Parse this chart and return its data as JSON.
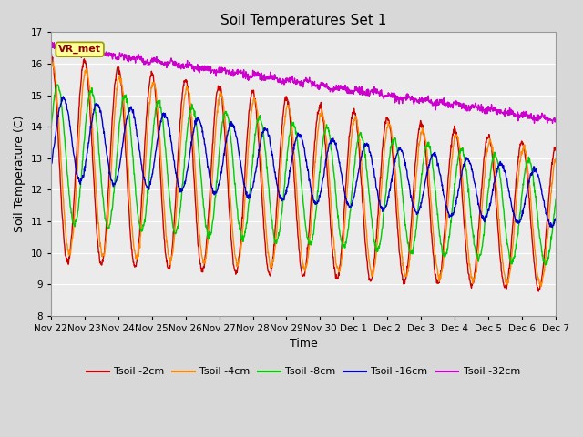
{
  "title": "Soil Temperatures Set 1",
  "xlabel": "Time",
  "ylabel": "Soil Temperature (C)",
  "ylim": [
    8.0,
    17.0
  ],
  "yticks": [
    8.0,
    9.0,
    10.0,
    11.0,
    12.0,
    13.0,
    14.0,
    15.0,
    16.0,
    17.0
  ],
  "series_colors": {
    "Tsoil -2cm": "#cc0000",
    "Tsoil -4cm": "#ff8800",
    "Tsoil -8cm": "#00cc00",
    "Tsoil -16cm": "#0000cc",
    "Tsoil -32cm": "#cc00cc"
  },
  "xtick_labels": [
    "Nov 22",
    "Nov 23",
    "Nov 24",
    "Nov 25",
    "Nov 26",
    "Nov 27",
    "Nov 28",
    "Nov 29",
    "Nov 30",
    "Dec 1",
    "Dec 2",
    "Dec 3",
    "Dec 4",
    "Dec 5",
    "Dec 6",
    "Dec 7"
  ],
  "annotation_text": "VR_met",
  "annotation_color": "#8B0000",
  "annotation_bg": "#FFFF99",
  "background_color": "#d8d8d8",
  "plot_bg": "#ebebeb",
  "n_points": 1440,
  "n_days": 15,
  "grid_color": "#ffffff",
  "legend_labels": [
    "Tsoil -2cm",
    "Tsoil -4cm",
    "Tsoil -8cm",
    "Tsoil -16cm",
    "Tsoil -32cm"
  ]
}
